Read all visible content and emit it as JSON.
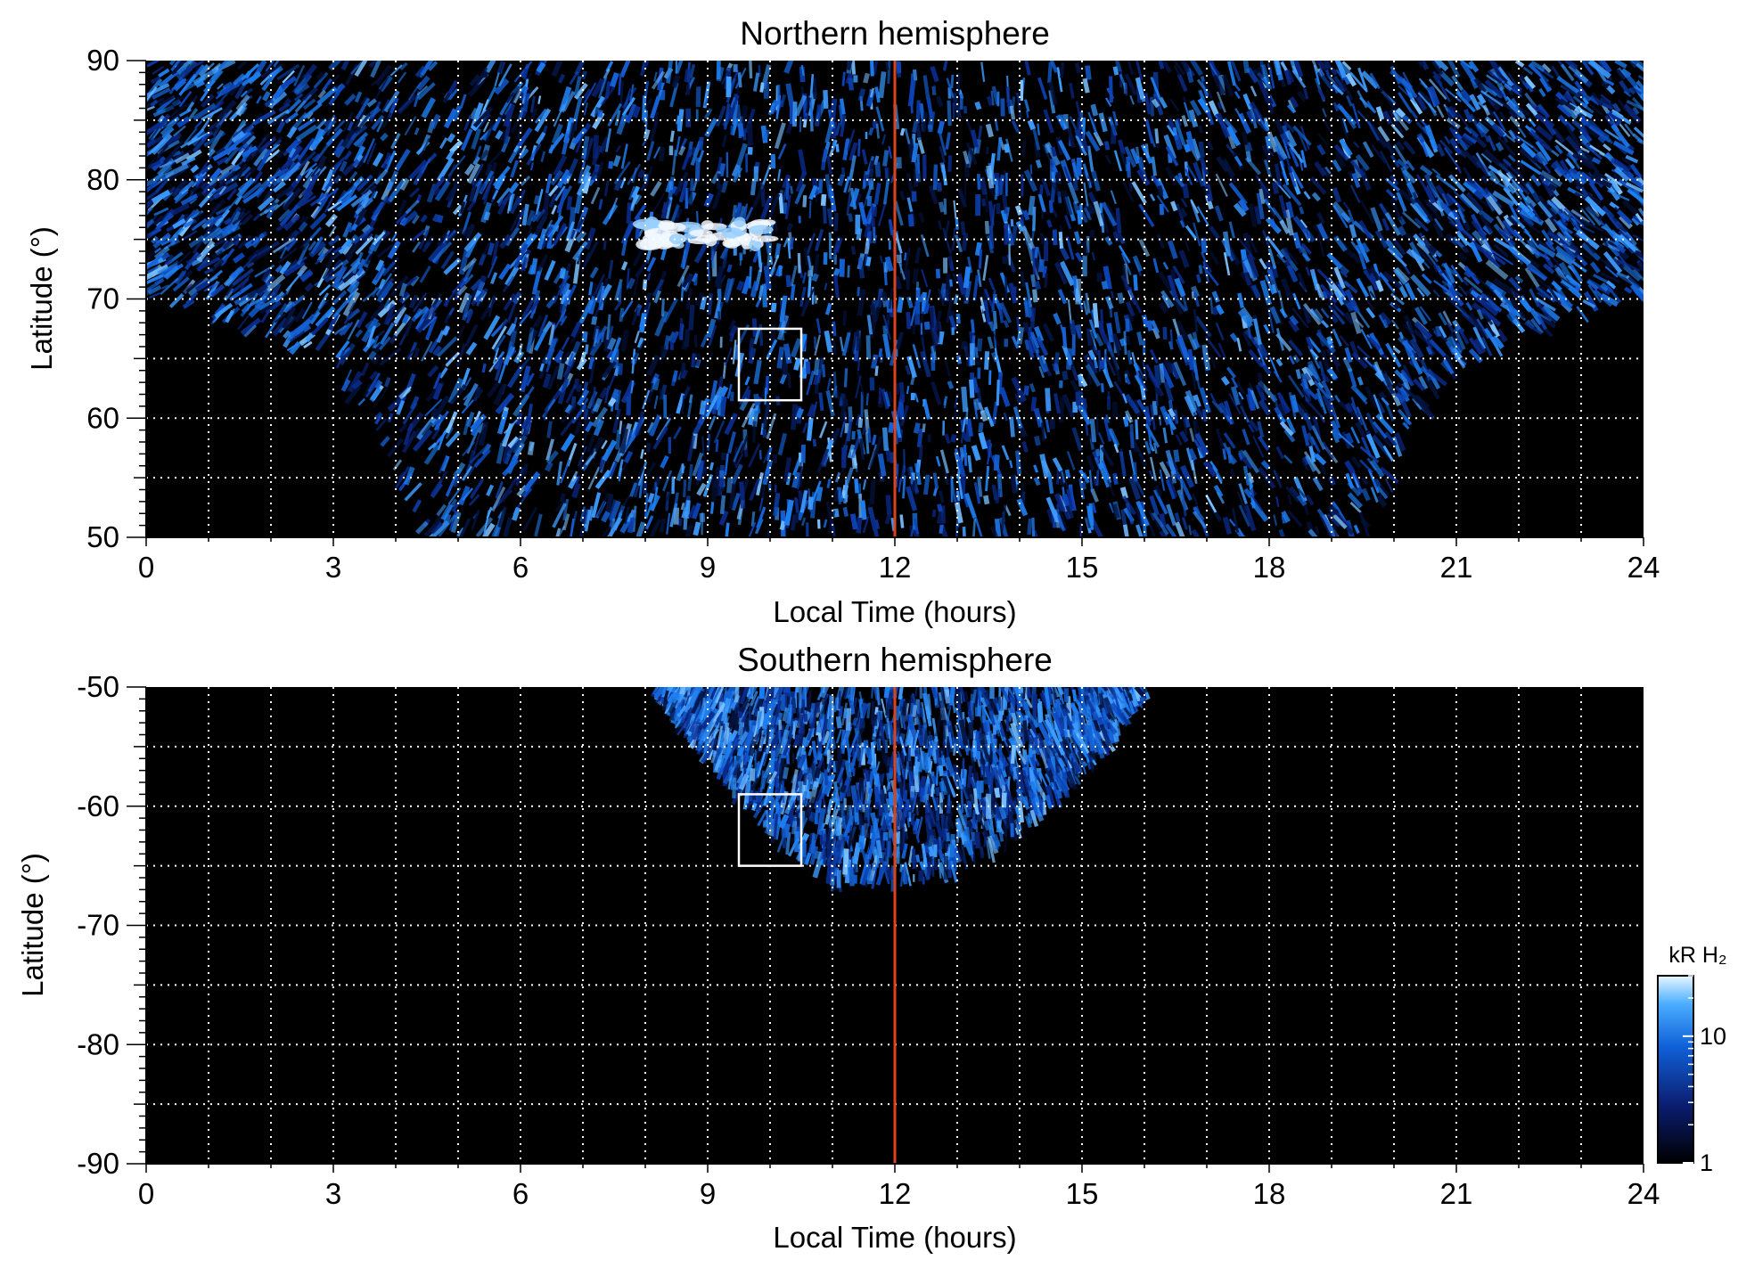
{
  "chart_data": [
    {
      "type": "heatmap",
      "title": "Northern hemisphere",
      "xlabel": "Local Time (hours)",
      "ylabel": "Latitude (°)",
      "xlim": [
        0,
        24
      ],
      "ylim": [
        50,
        90
      ],
      "x_ticks": [
        0,
        3,
        6,
        9,
        12,
        15,
        18,
        21,
        24
      ],
      "y_ticks": [
        50,
        60,
        70,
        80,
        90
      ],
      "grid": true,
      "vertical_line": {
        "x": 12,
        "color": "#d9441c"
      },
      "box": {
        "x": [
          9.5,
          10.5
        ],
        "y": [
          61.5,
          67.5
        ]
      },
      "coverage_boundary_latitude": [
        [
          0,
          70.5
        ],
        [
          1,
          68.5
        ],
        [
          2,
          66.5
        ],
        [
          3,
          64
        ],
        [
          4,
          56.5
        ],
        [
          4.4,
          50
        ],
        [
          19.8,
          50
        ],
        [
          20,
          57
        ],
        [
          21,
          64
        ],
        [
          22,
          67
        ],
        [
          23,
          68.5
        ],
        [
          24,
          70.5
        ]
      ],
      "bright_feature": {
        "local_time": [
          8,
          10
        ],
        "latitude": [
          74.5,
          76.5
        ]
      }
    },
    {
      "type": "heatmap",
      "title": "Southern hemisphere",
      "xlabel": "Local Time (hours)",
      "ylabel": "Latitude (°)",
      "xlim": [
        0,
        24
      ],
      "ylim": [
        -90,
        -50
      ],
      "x_ticks": [
        0,
        3,
        6,
        9,
        12,
        15,
        18,
        21,
        24
      ],
      "y_ticks": [
        -50,
        -60,
        -70,
        -80,
        -90
      ],
      "grid": true,
      "vertical_line": {
        "x": 12,
        "color": "#d9441c"
      },
      "box": {
        "x": [
          9.5,
          10.5
        ],
        "y": [
          -65,
          -59
        ]
      },
      "coverage_boundary_latitude": [
        [
          8.2,
          -50
        ],
        [
          9,
          -56
        ],
        [
          10,
          -62
        ],
        [
          11,
          -66.5
        ],
        [
          11.7,
          -66
        ],
        [
          12.5,
          -66.5
        ],
        [
          13.5,
          -64
        ],
        [
          14.5,
          -60
        ],
        [
          15.5,
          -54
        ],
        [
          16,
          -50
        ]
      ]
    }
  ],
  "colorbar": {
    "label": "kR H₂",
    "scale": "log",
    "range": [
      1,
      30
    ],
    "ticks": [
      1,
      10
    ],
    "colors": [
      "#000000",
      "#0a1c6e",
      "#1060d8",
      "#4aaeff",
      "#eaf6ff"
    ]
  },
  "colors": {
    "background": "#000000",
    "emission": "#1a6ee8",
    "grid": "#ffffff",
    "noon_line": "#d9441c"
  }
}
